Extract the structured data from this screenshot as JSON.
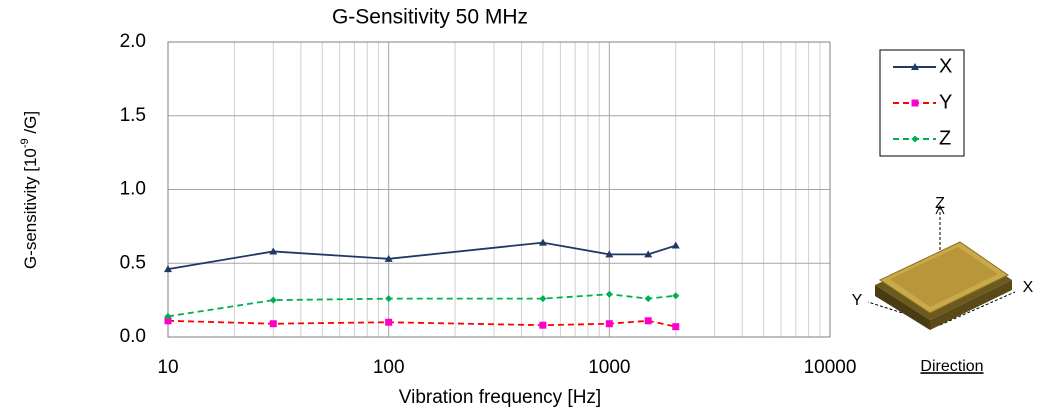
{
  "chart_data": {
    "type": "line",
    "title": "G-Sensitivity 50 MHz",
    "xlabel": "Vibration frequency [Hz]",
    "ylabel": {
      "prefix": "G-sensitivity [10",
      "exponent": "-9",
      "suffix": " /G]"
    },
    "xscale": "log",
    "xlim": [
      10,
      10000
    ],
    "xticks": [
      10,
      100,
      1000,
      10000
    ],
    "xminor_ticks": [
      20,
      30,
      40,
      50,
      60,
      70,
      80,
      90,
      200,
      300,
      400,
      500,
      600,
      700,
      800,
      900,
      2000,
      3000,
      4000,
      5000,
      6000,
      7000,
      8000,
      9000
    ],
    "ylim": [
      0,
      2
    ],
    "yticks": [
      {
        "value": 0,
        "label": "0.0"
      },
      {
        "value": 0.5,
        "label": "0.5"
      },
      {
        "value": 1,
        "label": "1.0"
      },
      {
        "value": 1.5,
        "label": "1.5"
      },
      {
        "value": 2,
        "label": "2.0"
      }
    ],
    "grid": true,
    "legend": "right",
    "series": [
      {
        "name": "X",
        "color": "#1f3864",
        "marker_color": "#1f3864",
        "marker": "triangle",
        "dash": "solid",
        "x": [
          10,
          30,
          100,
          500,
          1000,
          1500,
          2000
        ],
        "values": [
          0.46,
          0.58,
          0.53,
          0.64,
          0.56,
          0.56,
          0.62
        ]
      },
      {
        "name": "Y",
        "color": "#ff0000",
        "marker_color": "#ff00cc",
        "marker": "square",
        "dash": "dashed",
        "x": [
          10,
          30,
          100,
          500,
          1000,
          1500,
          2000
        ],
        "values": [
          0.11,
          0.09,
          0.1,
          0.08,
          0.09,
          0.11,
          0.07
        ]
      },
      {
        "name": "Z",
        "color": "#00b050",
        "marker_color": "#00b050",
        "marker": "diamond",
        "dash": "dashed",
        "x": [
          10,
          30,
          100,
          500,
          1000,
          1500,
          2000
        ],
        "values": [
          0.14,
          0.25,
          0.26,
          0.26,
          0.29,
          0.26,
          0.28
        ]
      }
    ]
  },
  "diagram": {
    "axes": {
      "z": "Z",
      "y": "Y",
      "x": "X"
    },
    "caption": "Direction"
  }
}
